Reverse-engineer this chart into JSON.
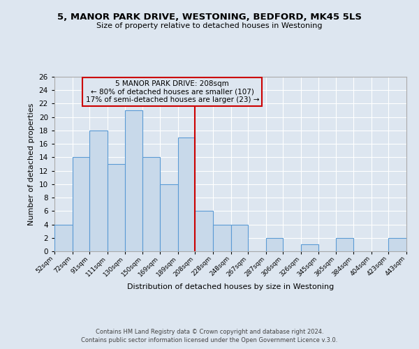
{
  "title1": "5, MANOR PARK DRIVE, WESTONING, BEDFORD, MK45 5LS",
  "title2": "Size of property relative to detached houses in Westoning",
  "xlabel": "Distribution of detached houses by size in Westoning",
  "ylabel": "Number of detached properties",
  "bin_edges": [
    52,
    72,
    91,
    111,
    130,
    150,
    169,
    189,
    208,
    228,
    248,
    267,
    287,
    306,
    326,
    345,
    365,
    384,
    404,
    423,
    443
  ],
  "bar_heights": [
    4,
    14,
    18,
    13,
    21,
    14,
    10,
    17,
    6,
    4,
    4,
    0,
    2,
    0,
    1,
    0,
    2,
    0,
    0,
    2
  ],
  "bar_color": "#c8d9ea",
  "bar_edge_color": "#5b9bd5",
  "vline_x": 208,
  "vline_color": "#cc0000",
  "ylim_max": 26,
  "yticks": [
    0,
    2,
    4,
    6,
    8,
    10,
    12,
    14,
    16,
    18,
    20,
    22,
    24,
    26
  ],
  "annotation_title": "5 MANOR PARK DRIVE: 208sqm",
  "annotation_line1": "← 80% of detached houses are smaller (107)",
  "annotation_line2": "17% of semi-detached houses are larger (23) →",
  "annotation_box_edgecolor": "#cc0000",
  "bg_color": "#dde6f0",
  "grid_color": "#ffffff",
  "footer1": "Contains HM Land Registry data © Crown copyright and database right 2024.",
  "footer2": "Contains public sector information licensed under the Open Government Licence v.3.0."
}
